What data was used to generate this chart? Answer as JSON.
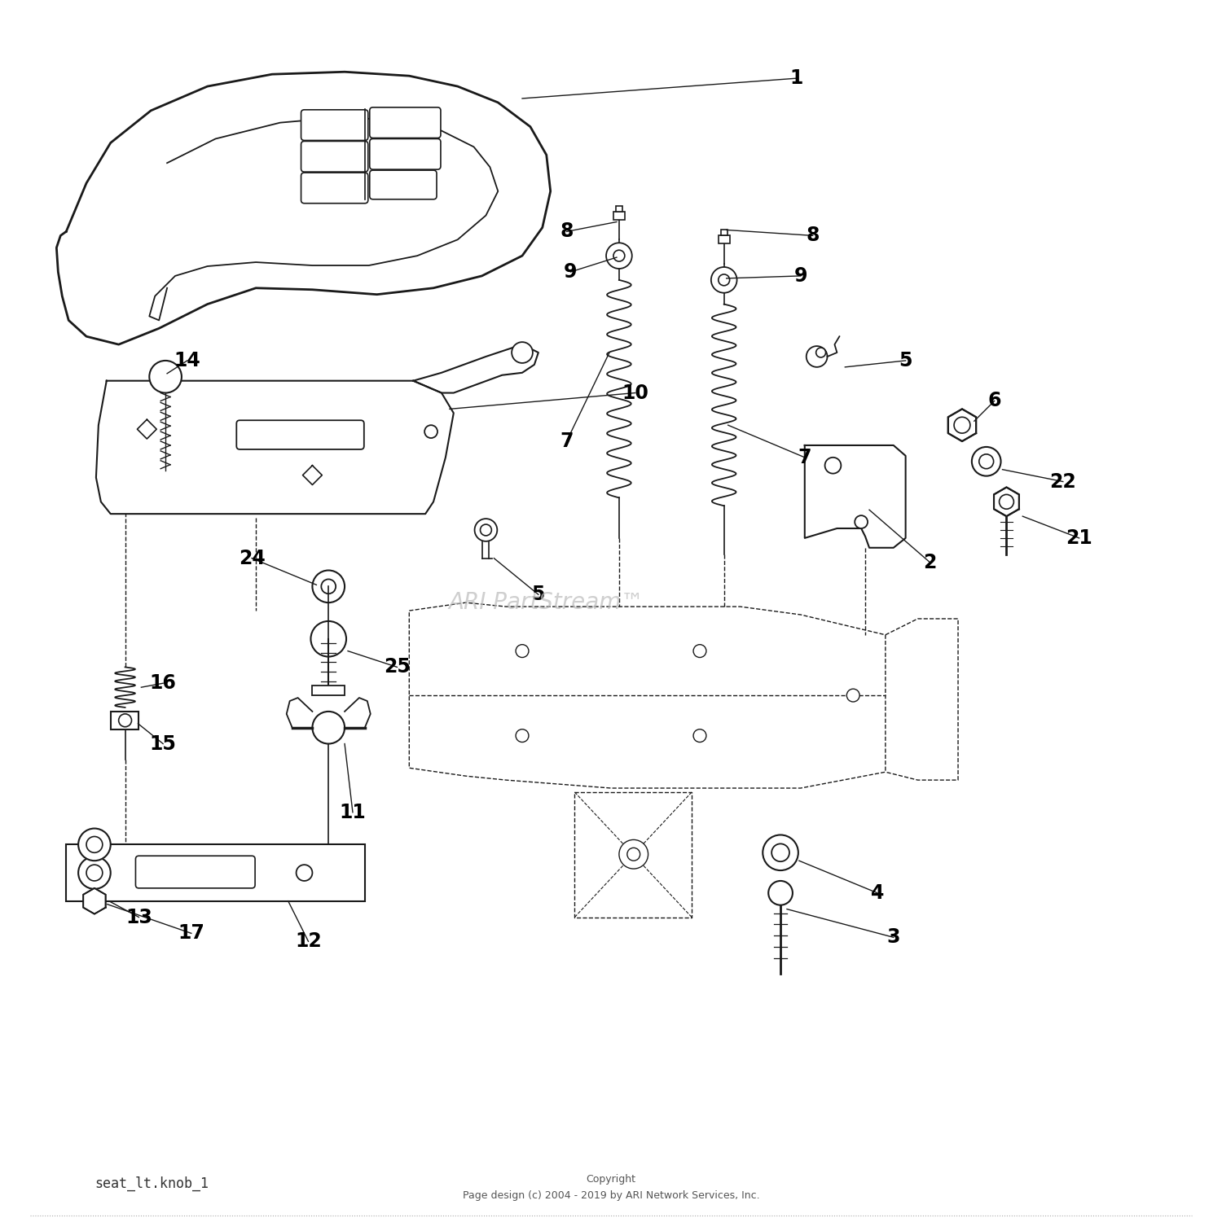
{
  "background_color": "#ffffff",
  "line_color": "#1a1a1a",
  "label_color": "#000000",
  "watermark": "ARI PartStream™",
  "watermark_color": "#bbbbbb",
  "footer_line1": "Copyright",
  "footer_line2": "Page design (c) 2004 - 2019 by ARI Network Services, Inc.",
  "filename_label": "seat_lt.knob_1"
}
